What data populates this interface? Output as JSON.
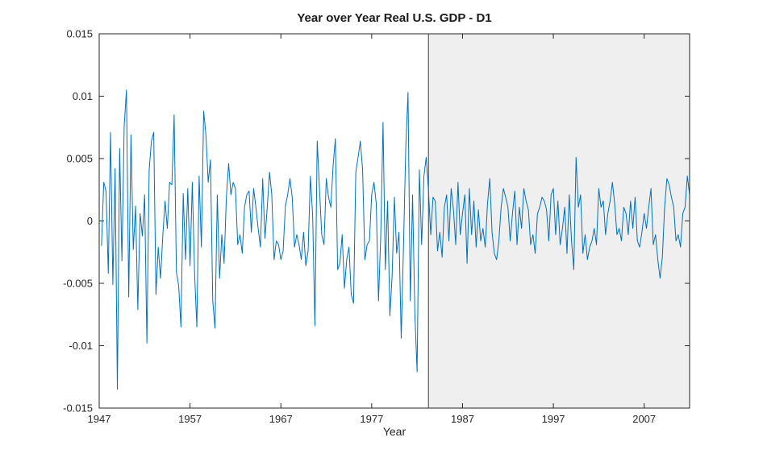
{
  "figure": {
    "background": "#ffffff",
    "axis_color": "#262626",
    "box_on": true
  },
  "chart_data": {
    "type": "line",
    "title": "Year over Year Real U.S. GDP - D1",
    "xlabel": "Year",
    "ylabel": "",
    "xlim": [
      1947,
      2012
    ],
    "ylim": [
      -0.015,
      0.015
    ],
    "x_ticks": [
      1947,
      1957,
      1967,
      1977,
      1987,
      1997,
      2007
    ],
    "x_tick_labels": [
      "1947",
      "1957",
      "1967",
      "1977",
      "1987",
      "1997",
      "2007"
    ],
    "y_ticks": [
      -0.015,
      -0.01,
      -0.005,
      0,
      0.005,
      0.01,
      0.015
    ],
    "y_tick_labels": [
      "-0.015",
      "-0.01",
      "-0.005",
      "0",
      "0.005",
      "0.01",
      "0.015"
    ],
    "grid": false,
    "legend": false,
    "line_color": "#0072BD",
    "shaded_region": {
      "x_start": 1983.25,
      "x_end": 2012,
      "fill": "#efefef",
      "edge": "#3f3f3f"
    },
    "series": [
      {
        "name": "gdp_yoy_d1",
        "x_start": 1947.25,
        "x_step": 0.25,
        "values": [
          -0.002,
          0.0031,
          0.0024,
          -0.0042,
          0.0071,
          -0.0051,
          0.0042,
          -0.0135,
          0.0058,
          -0.0032,
          0.0076,
          0.0105,
          -0.0061,
          0.0069,
          -0.0023,
          0.0012,
          -0.0071,
          0.0006,
          -0.0012,
          0.0021,
          -0.0098,
          0.0041,
          0.0064,
          0.0071,
          -0.0059,
          -0.0021,
          -0.0046,
          -0.0012,
          0.0016,
          -0.0006,
          0.0031,
          0.0029,
          0.0085,
          -0.0041,
          -0.0052,
          -0.0085,
          0.0022,
          -0.0031,
          0.0026,
          -0.0036,
          0.0031,
          -0.0042,
          -0.0085,
          0.0036,
          -0.0021,
          0.0088,
          0.0069,
          0.0031,
          0.0049,
          -0.0064,
          -0.0086,
          0.0021,
          -0.0046,
          -0.0011,
          -0.0034,
          0.0019,
          0.0046,
          0.0021,
          0.0031,
          0.0026,
          -0.0019,
          -0.0011,
          -0.0026,
          0.0011,
          0.0021,
          0.0024,
          -0.0009,
          0.0026,
          0.0011,
          -0.0006,
          -0.0021,
          0.0034,
          -0.0014,
          0.0011,
          0.0039,
          0.0021,
          -0.0031,
          -0.0016,
          -0.0019,
          -0.0031,
          -0.0024,
          0.0012,
          0.0021,
          0.0034,
          0.0019,
          -0.0021,
          -0.0011,
          -0.0019,
          -0.0031,
          -0.0009,
          -0.0036,
          -0.0024,
          0.0036,
          0.0004,
          -0.0084,
          0.0064,
          0.0026,
          -0.0011,
          -0.0019,
          0.0034,
          0.0019,
          0.0011,
          0.0044,
          0.0066,
          -0.0039,
          -0.0034,
          -0.0011,
          -0.0054,
          -0.0031,
          -0.0021,
          -0.0059,
          -0.0066,
          0.0039,
          0.0051,
          0.0064,
          0.0041,
          -0.0031,
          -0.0019,
          -0.0016,
          0.0021,
          0.0031,
          0.0014,
          -0.0064,
          -0.0011,
          0.0079,
          -0.0039,
          0.0016,
          -0.0076,
          -0.0044,
          0.0019,
          -0.0026,
          -0.0009,
          -0.0094,
          -0.0021,
          0.0059,
          0.0103,
          -0.0064,
          0.0021,
          -0.0074,
          -0.0121,
          0.0041,
          -0.0019,
          0.0036,
          0.0051,
          0.0024,
          -0.0011,
          0.0019,
          0.0016,
          -0.0024,
          -0.0009,
          -0.0029,
          0.0011,
          0.0021,
          -0.0016,
          0.0026,
          0.0009,
          -0.0019,
          0.0031,
          -0.0011,
          0.0006,
          0.0021,
          -0.0034,
          0.0026,
          -0.0011,
          0.0016,
          -0.0021,
          0.0009,
          -0.0016,
          -0.0006,
          -0.0021,
          0.0014,
          0.0034,
          -0.0009,
          -0.0026,
          -0.0031,
          -0.0016,
          0.0011,
          0.0026,
          0.0019,
          0.0011,
          -0.0016,
          0.0006,
          0.0024,
          -0.0019,
          0.0011,
          -0.0006,
          0.0026,
          0.0016,
          0.0009,
          -0.0019,
          -0.0011,
          -0.0026,
          0.0006,
          0.0011,
          0.0019,
          0.0016,
          0.0009,
          -0.0016,
          0.0021,
          0.0026,
          -0.0011,
          0.0016,
          -0.0019,
          -0.0006,
          0.0011,
          -0.0026,
          0.0021,
          -0.0016,
          -0.0039,
          0.0051,
          0.0011,
          0.0021,
          -0.0026,
          -0.0011,
          -0.0031,
          -0.0021,
          -0.0016,
          -0.0006,
          -0.0019,
          0.0026,
          0.0011,
          0.0016,
          -0.0011,
          0.0006,
          0.0016,
          0.0031,
          0.0014,
          -0.0011,
          -0.0006,
          -0.0016,
          0.0011,
          0.0006,
          -0.0011,
          0.0016,
          -0.0006,
          0.0019,
          -0.0016,
          -0.0021,
          -0.0009,
          0.0006,
          -0.0006,
          0.0011,
          0.0026,
          -0.0019,
          -0.0011,
          -0.0031,
          -0.0046,
          -0.0029,
          0.0011,
          0.0034,
          0.0029,
          0.0019,
          0.0011,
          -0.0016,
          -0.0011,
          -0.0021,
          0.0006,
          0.0011,
          0.0036,
          0.0021
        ]
      }
    ]
  }
}
